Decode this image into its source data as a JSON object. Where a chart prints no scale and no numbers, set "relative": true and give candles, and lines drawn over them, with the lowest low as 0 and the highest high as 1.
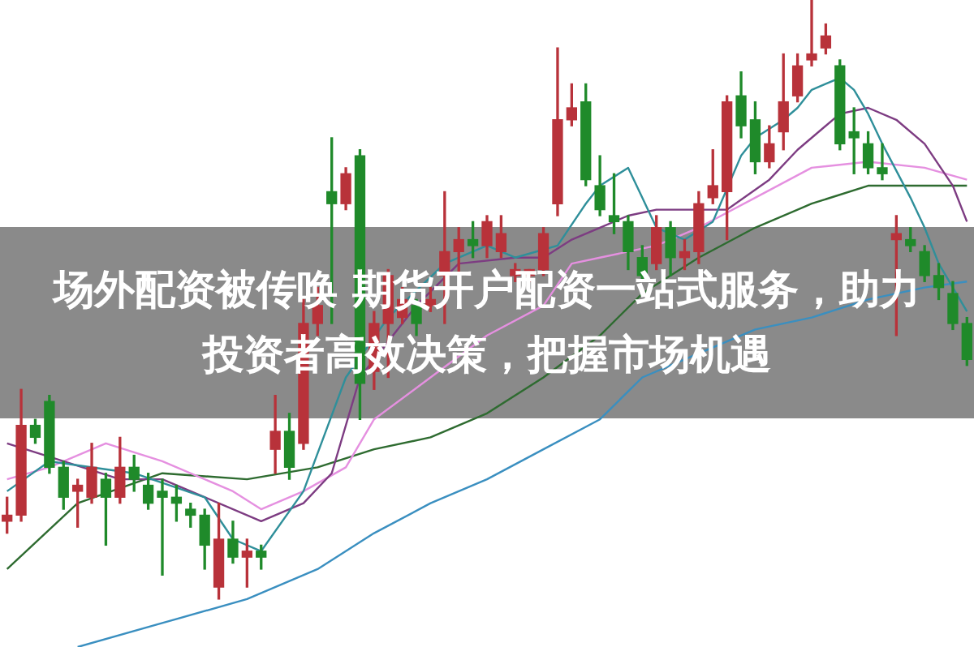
{
  "chart_data": {
    "type": "candlestick",
    "title": "场外配资被传唤 期货开户配资一站式服务，助力投资者高效决策，把握市场机遇",
    "relative": true,
    "categories": [
      null,
      null,
      null,
      null,
      null,
      null,
      null,
      null,
      null,
      null,
      null,
      null,
      null,
      null,
      null,
      null,
      null,
      null,
      null,
      null,
      null,
      null,
      null,
      null,
      null,
      null,
      null,
      null,
      null,
      null,
      null,
      null,
      null,
      null,
      null,
      null,
      null,
      null,
      null,
      null,
      null,
      null,
      null,
      null,
      null,
      null,
      null,
      null,
      null,
      null,
      null,
      null,
      null,
      null,
      null,
      null,
      null,
      null,
      null,
      null,
      null,
      null,
      null,
      null,
      null,
      null,
      null,
      null,
      null
    ],
    "ohlc": [
      [
        0.13,
        0.17,
        0.11,
        0.14
      ],
      [
        0.14,
        0.35,
        0.13,
        0.29
      ],
      [
        0.29,
        0.3,
        0.26,
        0.27
      ],
      [
        0.33,
        0.34,
        0.21,
        0.22
      ],
      [
        0.22,
        0.23,
        0.15,
        0.17
      ],
      [
        0.18,
        0.2,
        0.12,
        0.19
      ],
      [
        0.17,
        0.26,
        0.16,
        0.22
      ],
      [
        0.2,
        0.21,
        0.09,
        0.17
      ],
      [
        0.17,
        0.27,
        0.16,
        0.22
      ],
      [
        0.22,
        0.24,
        0.18,
        0.2
      ],
      [
        0.19,
        0.21,
        0.15,
        0.16
      ],
      [
        0.18,
        0.2,
        0.04,
        0.17
      ],
      [
        0.17,
        0.19,
        0.13,
        0.16
      ],
      [
        0.15,
        0.16,
        0.12,
        0.14
      ],
      [
        0.14,
        0.15,
        0.05,
        0.09
      ],
      [
        0.02,
        0.16,
        0,
        0.1
      ],
      [
        0.1,
        0.13,
        0.06,
        0.07
      ],
      [
        0.07,
        0.1,
        0.02,
        0.08
      ],
      [
        0.08,
        0.09,
        0.05,
        0.07
      ],
      [
        0.25,
        0.34,
        0.21,
        0.28
      ],
      [
        0.28,
        0.31,
        0.2,
        0.22
      ],
      [
        0.26,
        0.5,
        0.25,
        0.46
      ],
      [
        0.46,
        0.52,
        0.44,
        0.49
      ],
      [
        0.68,
        0.77,
        0.46,
        0.66
      ],
      [
        0.66,
        0.72,
        0.65,
        0.71
      ],
      [
        0.74,
        0.75,
        0.3,
        0.36
      ],
      [
        0.38,
        0.48,
        0.35,
        0.46
      ],
      [
        0.46,
        0.55,
        0.37,
        0.54
      ],
      [
        0.47,
        0.52,
        0.46,
        0.5
      ],
      [
        0.49,
        0.5,
        0.44,
        0.46
      ],
      [
        0.49,
        0.52,
        0.48,
        0.5
      ],
      [
        0.54,
        0.68,
        0.46,
        0.58
      ],
      [
        0.58,
        0.62,
        0.54,
        0.6
      ],
      [
        0.6,
        0.63,
        0.57,
        0.59
      ],
      [
        0.59,
        0.64,
        0.57,
        0.63
      ],
      [
        0.58,
        0.64,
        0.57,
        0.61
      ],
      [
        0.54,
        0.56,
        0.53,
        0.55
      ],
      [
        0.54,
        0.55,
        0.53,
        0.55
      ],
      [
        0.55,
        0.62,
        0.54,
        0.61
      ],
      [
        0.66,
        0.92,
        0.64,
        0.8
      ],
      [
        0.8,
        0.86,
        0.79,
        0.82
      ],
      [
        0.83,
        0.86,
        0.69,
        0.7
      ],
      [
        0.69,
        0.74,
        0.64,
        0.65
      ],
      [
        0.64,
        0.71,
        0.61,
        0.63
      ],
      [
        0.63,
        0.64,
        0.55,
        0.58
      ],
      [
        0.57,
        0.59,
        0.53,
        0.54
      ],
      [
        0.56,
        0.64,
        0.55,
        0.62
      ],
      [
        0.62,
        0.63,
        0.54,
        0.57
      ],
      [
        0.57,
        0.6,
        0.55,
        0.58
      ],
      [
        0.58,
        0.68,
        0.56,
        0.66
      ],
      [
        0.67,
        0.75,
        0.66,
        0.69
      ],
      [
        0.68,
        0.84,
        0.6,
        0.83
      ],
      [
        0.84,
        0.88,
        0.77,
        0.79
      ],
      [
        0.8,
        0.83,
        0.71,
        0.73
      ],
      [
        0.73,
        0.79,
        0.72,
        0.76
      ],
      [
        0.78,
        0.91,
        0.75,
        0.83
      ],
      [
        0.84,
        0.91,
        0.83,
        0.89
      ],
      [
        0.9,
        1,
        0.89,
        0.91
      ],
      [
        0.92,
        0.96,
        0.91,
        0.94
      ],
      [
        0.89,
        0.9,
        0.75,
        0.76
      ],
      [
        0.78,
        0.82,
        0.71,
        0.77
      ],
      [
        0.76,
        0.78,
        0.71,
        0.72
      ],
      [
        0.72,
        0.76,
        0.7,
        0.71
      ],
      [
        0.6,
        0.64,
        0.44,
        0.61
      ],
      [
        0.6,
        0.62,
        0.58,
        0.59
      ],
      [
        0.58,
        0.59,
        0.53,
        0.54
      ],
      [
        0.54,
        0.56,
        0.5,
        0.52
      ],
      [
        0.51,
        0.53,
        0.45,
        0.46
      ],
      [
        0.46,
        0.47,
        0.39,
        0.4
      ]
    ],
    "colors": [
      "#b8323a",
      "#b8323a",
      "#1f8a2a",
      "#1f8a2a",
      "#1f8a2a",
      "#b8323a",
      "#b8323a",
      "#1f8a2a",
      "#b8323a",
      "#1f8a2a",
      "#1f8a2a",
      "#1f8a2a",
      "#1f8a2a",
      "#1f8a2a",
      "#1f8a2a",
      "#b8323a",
      "#1f8a2a",
      "#b8323a",
      "#1f8a2a",
      "#b8323a",
      "#1f8a2a",
      "#b8323a",
      "#b8323a",
      "#1f8a2a",
      "#b8323a",
      "#1f8a2a",
      "#b8323a",
      "#b8323a",
      "#b8323a",
      "#1f8a2a",
      "#b8323a",
      "#b8323a",
      "#b8323a",
      "#1f8a2a",
      "#b8323a",
      "#b8323a",
      "#b8323a",
      "#b8323a",
      "#b8323a",
      "#b8323a",
      "#b8323a",
      "#1f8a2a",
      "#1f8a2a",
      "#1f8a2a",
      "#1f8a2a",
      "#1f8a2a",
      "#b8323a",
      "#1f8a2a",
      "#b8323a",
      "#b8323a",
      "#b8323a",
      "#b8323a",
      "#1f8a2a",
      "#1f8a2a",
      "#b8323a",
      "#b8323a",
      "#b8323a",
      "#b8323a",
      "#b8323a",
      "#1f8a2a",
      "#1f8a2a",
      "#1f8a2a",
      "#1f8a2a",
      "#b8323a",
      "#1f8a2a",
      "#1f8a2a",
      "#1f8a2a",
      "#1f8a2a",
      "#1f8a2a"
    ],
    "series": [
      {
        "type": "line",
        "color": "#2f8f9a",
        "values": [
          0.18,
          null,
          null,
          0.23,
          null,
          null,
          null,
          null,
          null,
          0.21,
          null,
          null,
          null,
          null,
          0.17,
          null,
          0.1,
          null,
          0.08,
          null,
          null,
          0.18,
          null,
          null,
          0.37,
          null,
          null,
          0.47,
          null,
          null,
          null,
          0.56,
          null,
          null,
          0.59,
          null,
          0.57,
          null,
          null,
          0.59,
          null,
          0.66,
          0.69,
          null,
          0.72,
          0.67,
          0.62,
          null,
          0.6,
          null,
          0.63,
          null,
          0.74,
          0.77,
          null,
          0.8,
          0.82,
          0.85,
          0.86,
          0.87,
          0.85,
          0.81,
          0.76,
          null,
          0.67,
          0.62,
          0.56,
          null,
          0.48
        ]
      },
      {
        "type": "line",
        "color": "#7d3c82",
        "values": [
          0.26,
          null,
          null,
          null,
          0.23,
          null,
          null,
          null,
          0.2,
          null,
          null,
          0.2,
          null,
          null,
          null,
          null,
          null,
          null,
          0.13,
          null,
          null,
          0.16,
          null,
          0.21,
          null,
          0.37,
          null,
          null,
          null,
          0.49,
          null,
          null,
          0.56,
          null,
          null,
          null,
          0.57,
          null,
          0.57,
          null,
          0.6,
          null,
          0.62,
          null,
          0.64,
          null,
          0.65,
          null,
          0.65,
          null,
          null,
          0.65,
          null,
          null,
          0.7,
          null,
          0.75,
          null,
          null,
          0.81,
          null,
          0.82,
          null,
          0.8,
          null,
          0.76,
          null,
          0.69,
          0.63
        ]
      },
      {
        "type": "line",
        "color": "#e590e0",
        "values": [
          0.2,
          null,
          null,
          0.22,
          null,
          null,
          null,
          0.26,
          null,
          null,
          null,
          0.23,
          null,
          null,
          null,
          null,
          0.18,
          null,
          0.15,
          null,
          null,
          0.18,
          null,
          null,
          0.22,
          null,
          0.3,
          null,
          null,
          null,
          0.37,
          null,
          null,
          null,
          0.44,
          null,
          null,
          null,
          0.49,
          null,
          0.56,
          null,
          0.57,
          null,
          null,
          null,
          0.59,
          null,
          null,
          0.62,
          null,
          null,
          null,
          0.67,
          null,
          null,
          null,
          0.72,
          null,
          null,
          null,
          0.73,
          null,
          null,
          null,
          0.72,
          null,
          null,
          0.7
        ]
      },
      {
        "type": "line",
        "color": "#2e6b30",
        "values": [
          0.05,
          null,
          null,
          null,
          null,
          0.16,
          null,
          null,
          null,
          null,
          null,
          0.21,
          null,
          null,
          null,
          null,
          null,
          0.2,
          null,
          null,
          null,
          null,
          0.22,
          null,
          null,
          null,
          0.25,
          null,
          null,
          null,
          0.27,
          null,
          null,
          null,
          0.31,
          null,
          null,
          null,
          0.37,
          null,
          null,
          null,
          0.44,
          null,
          null,
          0.51,
          null,
          null,
          null,
          0.57,
          null,
          null,
          null,
          0.62,
          null,
          null,
          null,
          0.66,
          null,
          null,
          null,
          0.69,
          null,
          null,
          null,
          0.69,
          null,
          null,
          0.69
        ]
      },
      {
        "type": "line",
        "color": "#3a8fc0",
        "values": [
          null,
          null,
          null,
          null,
          null,
          -0.08,
          null,
          null,
          null,
          null,
          null,
          -0.04,
          null,
          null,
          null,
          null,
          null,
          0,
          null,
          null,
          null,
          null,
          0.05,
          null,
          null,
          null,
          0.11,
          null,
          null,
          null,
          0.16,
          null,
          null,
          null,
          0.2,
          null,
          null,
          null,
          0.25,
          null,
          null,
          null,
          0.3,
          null,
          null,
          0.37,
          null,
          null,
          null,
          0.41,
          null,
          null,
          null,
          0.45,
          null,
          null,
          null,
          0.47,
          null,
          null,
          null,
          0.5,
          null,
          null,
          null,
          0.52,
          null,
          null,
          0.53
        ]
      }
    ]
  }
}
